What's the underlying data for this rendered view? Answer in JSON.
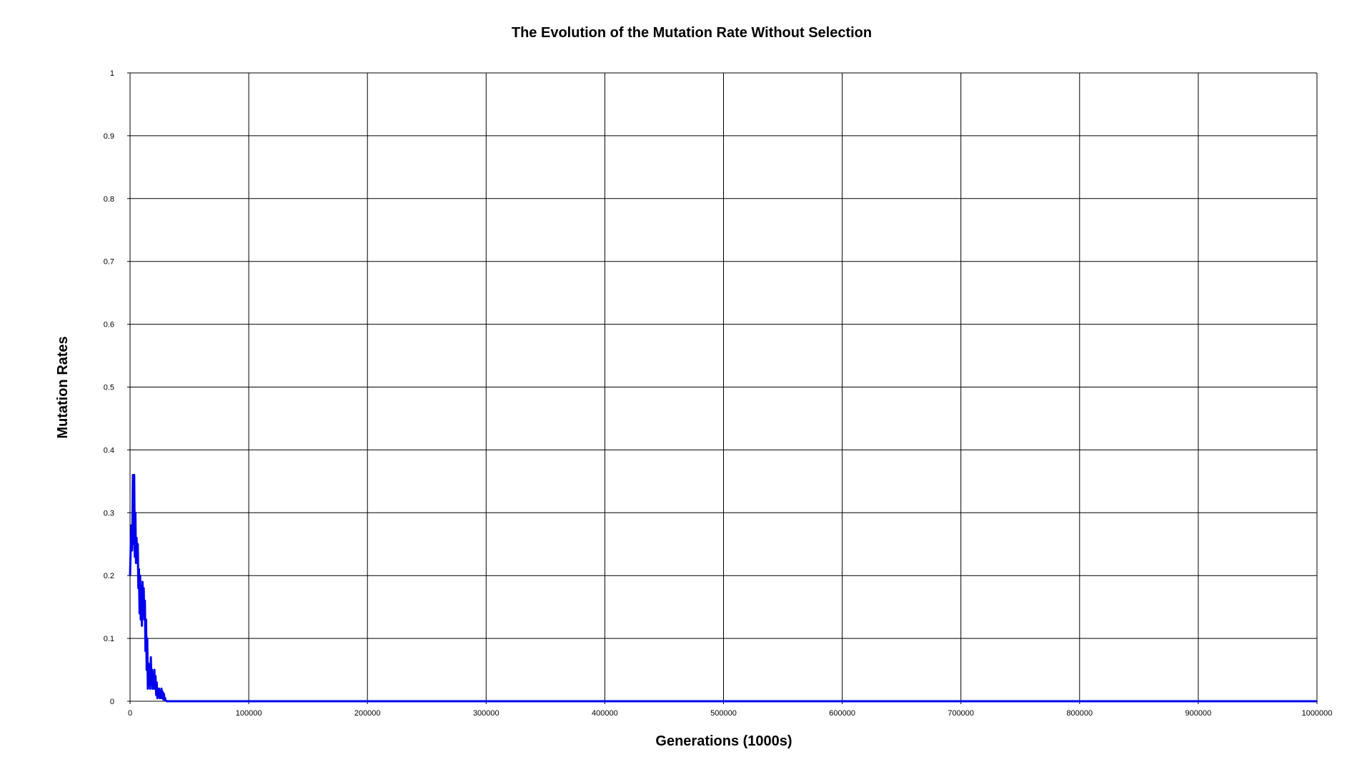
{
  "chart_data": {
    "type": "line",
    "title": "The Evolution of the Mutation Rate Without Selection",
    "xlabel": "Generations (1000s)",
    "ylabel": "Mutation Rates",
    "xlim": [
      0,
      1000000
    ],
    "ylim": [
      0,
      1
    ],
    "grid": true,
    "legend": "none",
    "x_ticks": [
      "0",
      "100000",
      "200000",
      "300000",
      "400000",
      "500000",
      "600000",
      "700000",
      "800000",
      "900000",
      "1000000"
    ],
    "y_ticks": [
      "0",
      "0.1",
      "0.2",
      "0.3",
      "0.4",
      "0.5",
      "0.6",
      "0.7",
      "0.8",
      "0.9",
      "1"
    ],
    "colors": {
      "series": "#0000ee",
      "grid": "#000000",
      "background": "#ffffff"
    },
    "series": [
      {
        "x": [
          0,
          600,
          1200,
          1800,
          2400,
          3000,
          3500,
          4000,
          4500,
          5000,
          5500,
          6000,
          6500,
          7000,
          7500,
          8000,
          8500,
          9000,
          9500,
          10000,
          10500,
          11000,
          11500,
          12000,
          12500,
          13000,
          13500,
          14000,
          14500,
          15000,
          15500,
          16000,
          16500,
          17000,
          17500,
          18000,
          18500,
          19000,
          19500,
          20000,
          20500,
          21000,
          21500,
          22000,
          22500,
          23000,
          23500,
          24000,
          24500,
          25000,
          25500,
          26000,
          26500,
          27000,
          27500,
          28000,
          28500,
          29000,
          29500,
          30000,
          31000,
          33000,
          40000,
          100000,
          1000000
        ],
        "y": [
          0.2,
          0.25,
          0.28,
          0.24,
          0.36,
          0.25,
          0.36,
          0.23,
          0.3,
          0.22,
          0.26,
          0.22,
          0.25,
          0.18,
          0.21,
          0.14,
          0.2,
          0.13,
          0.17,
          0.12,
          0.19,
          0.14,
          0.18,
          0.13,
          0.16,
          0.08,
          0.13,
          0.05,
          0.1,
          0.02,
          0.06,
          0.03,
          0.05,
          0.02,
          0.07,
          0.03,
          0.05,
          0.02,
          0.04,
          0.02,
          0.05,
          0.02,
          0.04,
          0.01,
          0.03,
          0.005,
          0.02,
          0.01,
          0.02,
          0.005,
          0.015,
          0.005,
          0.02,
          0.005,
          0.015,
          0.003,
          0.012,
          0.002,
          0.005,
          0.001,
          0.0,
          0.0,
          0.0,
          0.0,
          0.0
        ]
      }
    ]
  }
}
